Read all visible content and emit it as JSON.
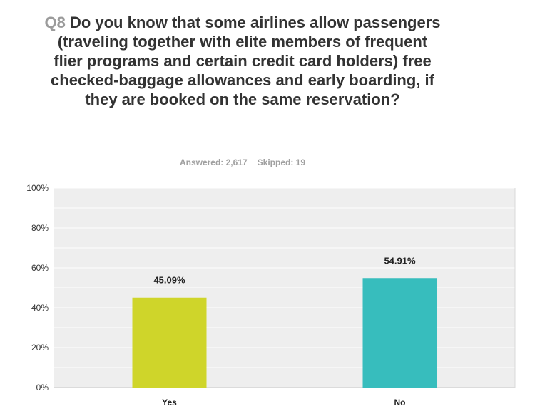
{
  "question": {
    "number": "Q8",
    "text": "Do you know that some airlines allow passengers (traveling together with elite members of frequent flier programs and certain credit card holders) free checked-baggage allowances and early boarding, if they are booked on the same reservation?"
  },
  "meta": {
    "answered": "Answered: 2,617",
    "skipped": "Skipped: 19"
  },
  "chart_data": {
    "type": "bar",
    "categories": [
      "Yes",
      "No"
    ],
    "values": [
      45.09,
      54.91
    ],
    "value_labels": [
      "45.09%",
      "54.91%"
    ],
    "colors": [
      "#cfd52a",
      "#37bdbd"
    ],
    "ylim": [
      0,
      100
    ],
    "yticks": [
      0,
      20,
      40,
      60,
      80,
      100
    ],
    "ytick_labels": [
      "0%",
      "20%",
      "40%",
      "60%",
      "80%",
      "100%"
    ],
    "grid": true,
    "plot_background": "#eeeeee"
  }
}
